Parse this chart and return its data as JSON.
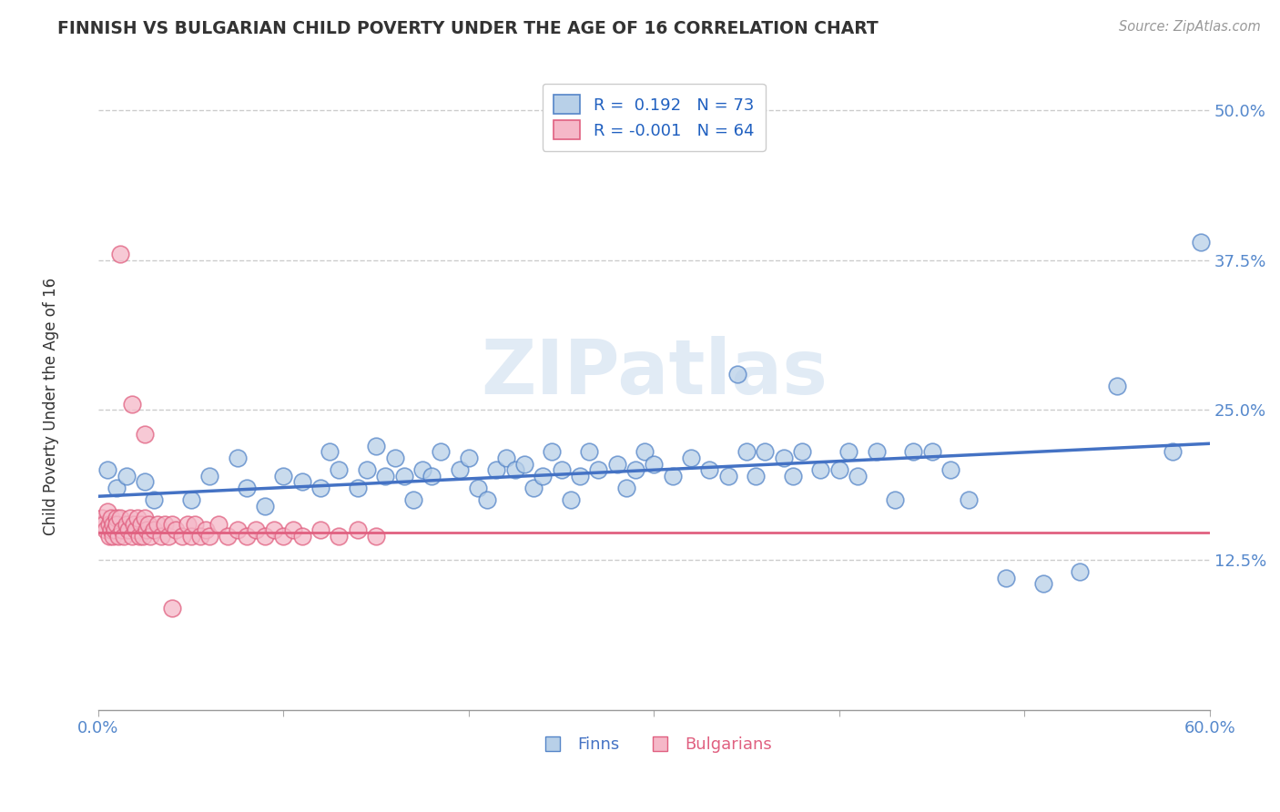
{
  "title": "FINNISH VS BULGARIAN CHILD POVERTY UNDER THE AGE OF 16 CORRELATION CHART",
  "source": "Source: ZipAtlas.com",
  "ylabel": "Child Poverty Under the Age of 16",
  "xlim": [
    0.0,
    0.6
  ],
  "ylim": [
    0.0,
    0.54
  ],
  "xtick_labels": [
    "0.0%",
    "",
    "",
    "",
    "",
    "",
    "60.0%"
  ],
  "xtick_values": [
    0.0,
    0.1,
    0.2,
    0.3,
    0.4,
    0.5,
    0.6
  ],
  "ytick_labels": [
    "12.5%",
    "25.0%",
    "37.5%",
    "50.0%"
  ],
  "ytick_values": [
    0.125,
    0.25,
    0.375,
    0.5
  ],
  "r_finn": 0.192,
  "n_finn": 73,
  "r_bulg": -0.001,
  "n_bulg": 64,
  "finn_color": "#b8d0e8",
  "finn_edge_color": "#5585c8",
  "finn_line_color": "#4472c4",
  "bulg_color": "#f5b8c8",
  "bulg_edge_color": "#e06080",
  "bulg_line_color": "#e06080",
  "legend_r_color": "#2060c0",
  "watermark": "ZIPatlas",
  "finn_line_start_y": 0.178,
  "finn_line_end_y": 0.222,
  "bulg_line_y": 0.148,
  "finns_x": [
    0.005,
    0.01,
    0.015,
    0.025,
    0.03,
    0.05,
    0.06,
    0.075,
    0.08,
    0.09,
    0.1,
    0.11,
    0.12,
    0.125,
    0.13,
    0.14,
    0.145,
    0.15,
    0.155,
    0.16,
    0.165,
    0.17,
    0.175,
    0.18,
    0.185,
    0.195,
    0.2,
    0.205,
    0.21,
    0.215,
    0.22,
    0.225,
    0.23,
    0.235,
    0.24,
    0.245,
    0.25,
    0.255,
    0.26,
    0.265,
    0.27,
    0.28,
    0.285,
    0.29,
    0.295,
    0.3,
    0.31,
    0.32,
    0.33,
    0.34,
    0.345,
    0.35,
    0.355,
    0.36,
    0.37,
    0.375,
    0.38,
    0.39,
    0.4,
    0.405,
    0.41,
    0.42,
    0.43,
    0.44,
    0.45,
    0.46,
    0.47,
    0.49,
    0.51,
    0.53,
    0.55,
    0.58,
    0.595
  ],
  "finns_y": [
    0.2,
    0.185,
    0.195,
    0.19,
    0.175,
    0.175,
    0.195,
    0.21,
    0.185,
    0.17,
    0.195,
    0.19,
    0.185,
    0.215,
    0.2,
    0.185,
    0.2,
    0.22,
    0.195,
    0.21,
    0.195,
    0.175,
    0.2,
    0.195,
    0.215,
    0.2,
    0.21,
    0.185,
    0.175,
    0.2,
    0.21,
    0.2,
    0.205,
    0.185,
    0.195,
    0.215,
    0.2,
    0.175,
    0.195,
    0.215,
    0.2,
    0.205,
    0.185,
    0.2,
    0.215,
    0.205,
    0.195,
    0.21,
    0.2,
    0.195,
    0.28,
    0.215,
    0.195,
    0.215,
    0.21,
    0.195,
    0.215,
    0.2,
    0.2,
    0.215,
    0.195,
    0.215,
    0.175,
    0.215,
    0.215,
    0.2,
    0.175,
    0.11,
    0.105,
    0.115,
    0.27,
    0.215,
    0.39
  ],
  "bulgs_x": [
    0.001,
    0.002,
    0.003,
    0.004,
    0.005,
    0.006,
    0.006,
    0.007,
    0.007,
    0.008,
    0.008,
    0.009,
    0.01,
    0.01,
    0.011,
    0.012,
    0.013,
    0.014,
    0.015,
    0.016,
    0.017,
    0.018,
    0.019,
    0.02,
    0.021,
    0.022,
    0.023,
    0.024,
    0.025,
    0.026,
    0.027,
    0.028,
    0.03,
    0.032,
    0.034,
    0.036,
    0.038,
    0.04,
    0.042,
    0.045,
    0.048,
    0.05,
    0.052,
    0.055,
    0.058,
    0.06,
    0.065,
    0.07,
    0.075,
    0.08,
    0.085,
    0.09,
    0.095,
    0.1,
    0.105,
    0.11,
    0.12,
    0.13,
    0.14,
    0.15,
    0.012,
    0.018,
    0.025,
    0.04
  ],
  "bulgs_y": [
    0.155,
    0.16,
    0.155,
    0.15,
    0.165,
    0.145,
    0.155,
    0.15,
    0.16,
    0.145,
    0.155,
    0.15,
    0.16,
    0.155,
    0.145,
    0.16,
    0.15,
    0.145,
    0.155,
    0.15,
    0.16,
    0.145,
    0.155,
    0.15,
    0.16,
    0.145,
    0.155,
    0.145,
    0.16,
    0.15,
    0.155,
    0.145,
    0.15,
    0.155,
    0.145,
    0.155,
    0.145,
    0.155,
    0.15,
    0.145,
    0.155,
    0.145,
    0.155,
    0.145,
    0.15,
    0.145,
    0.155,
    0.145,
    0.15,
    0.145,
    0.15,
    0.145,
    0.15,
    0.145,
    0.15,
    0.145,
    0.15,
    0.145,
    0.15,
    0.145,
    0.38,
    0.255,
    0.23,
    0.085
  ]
}
